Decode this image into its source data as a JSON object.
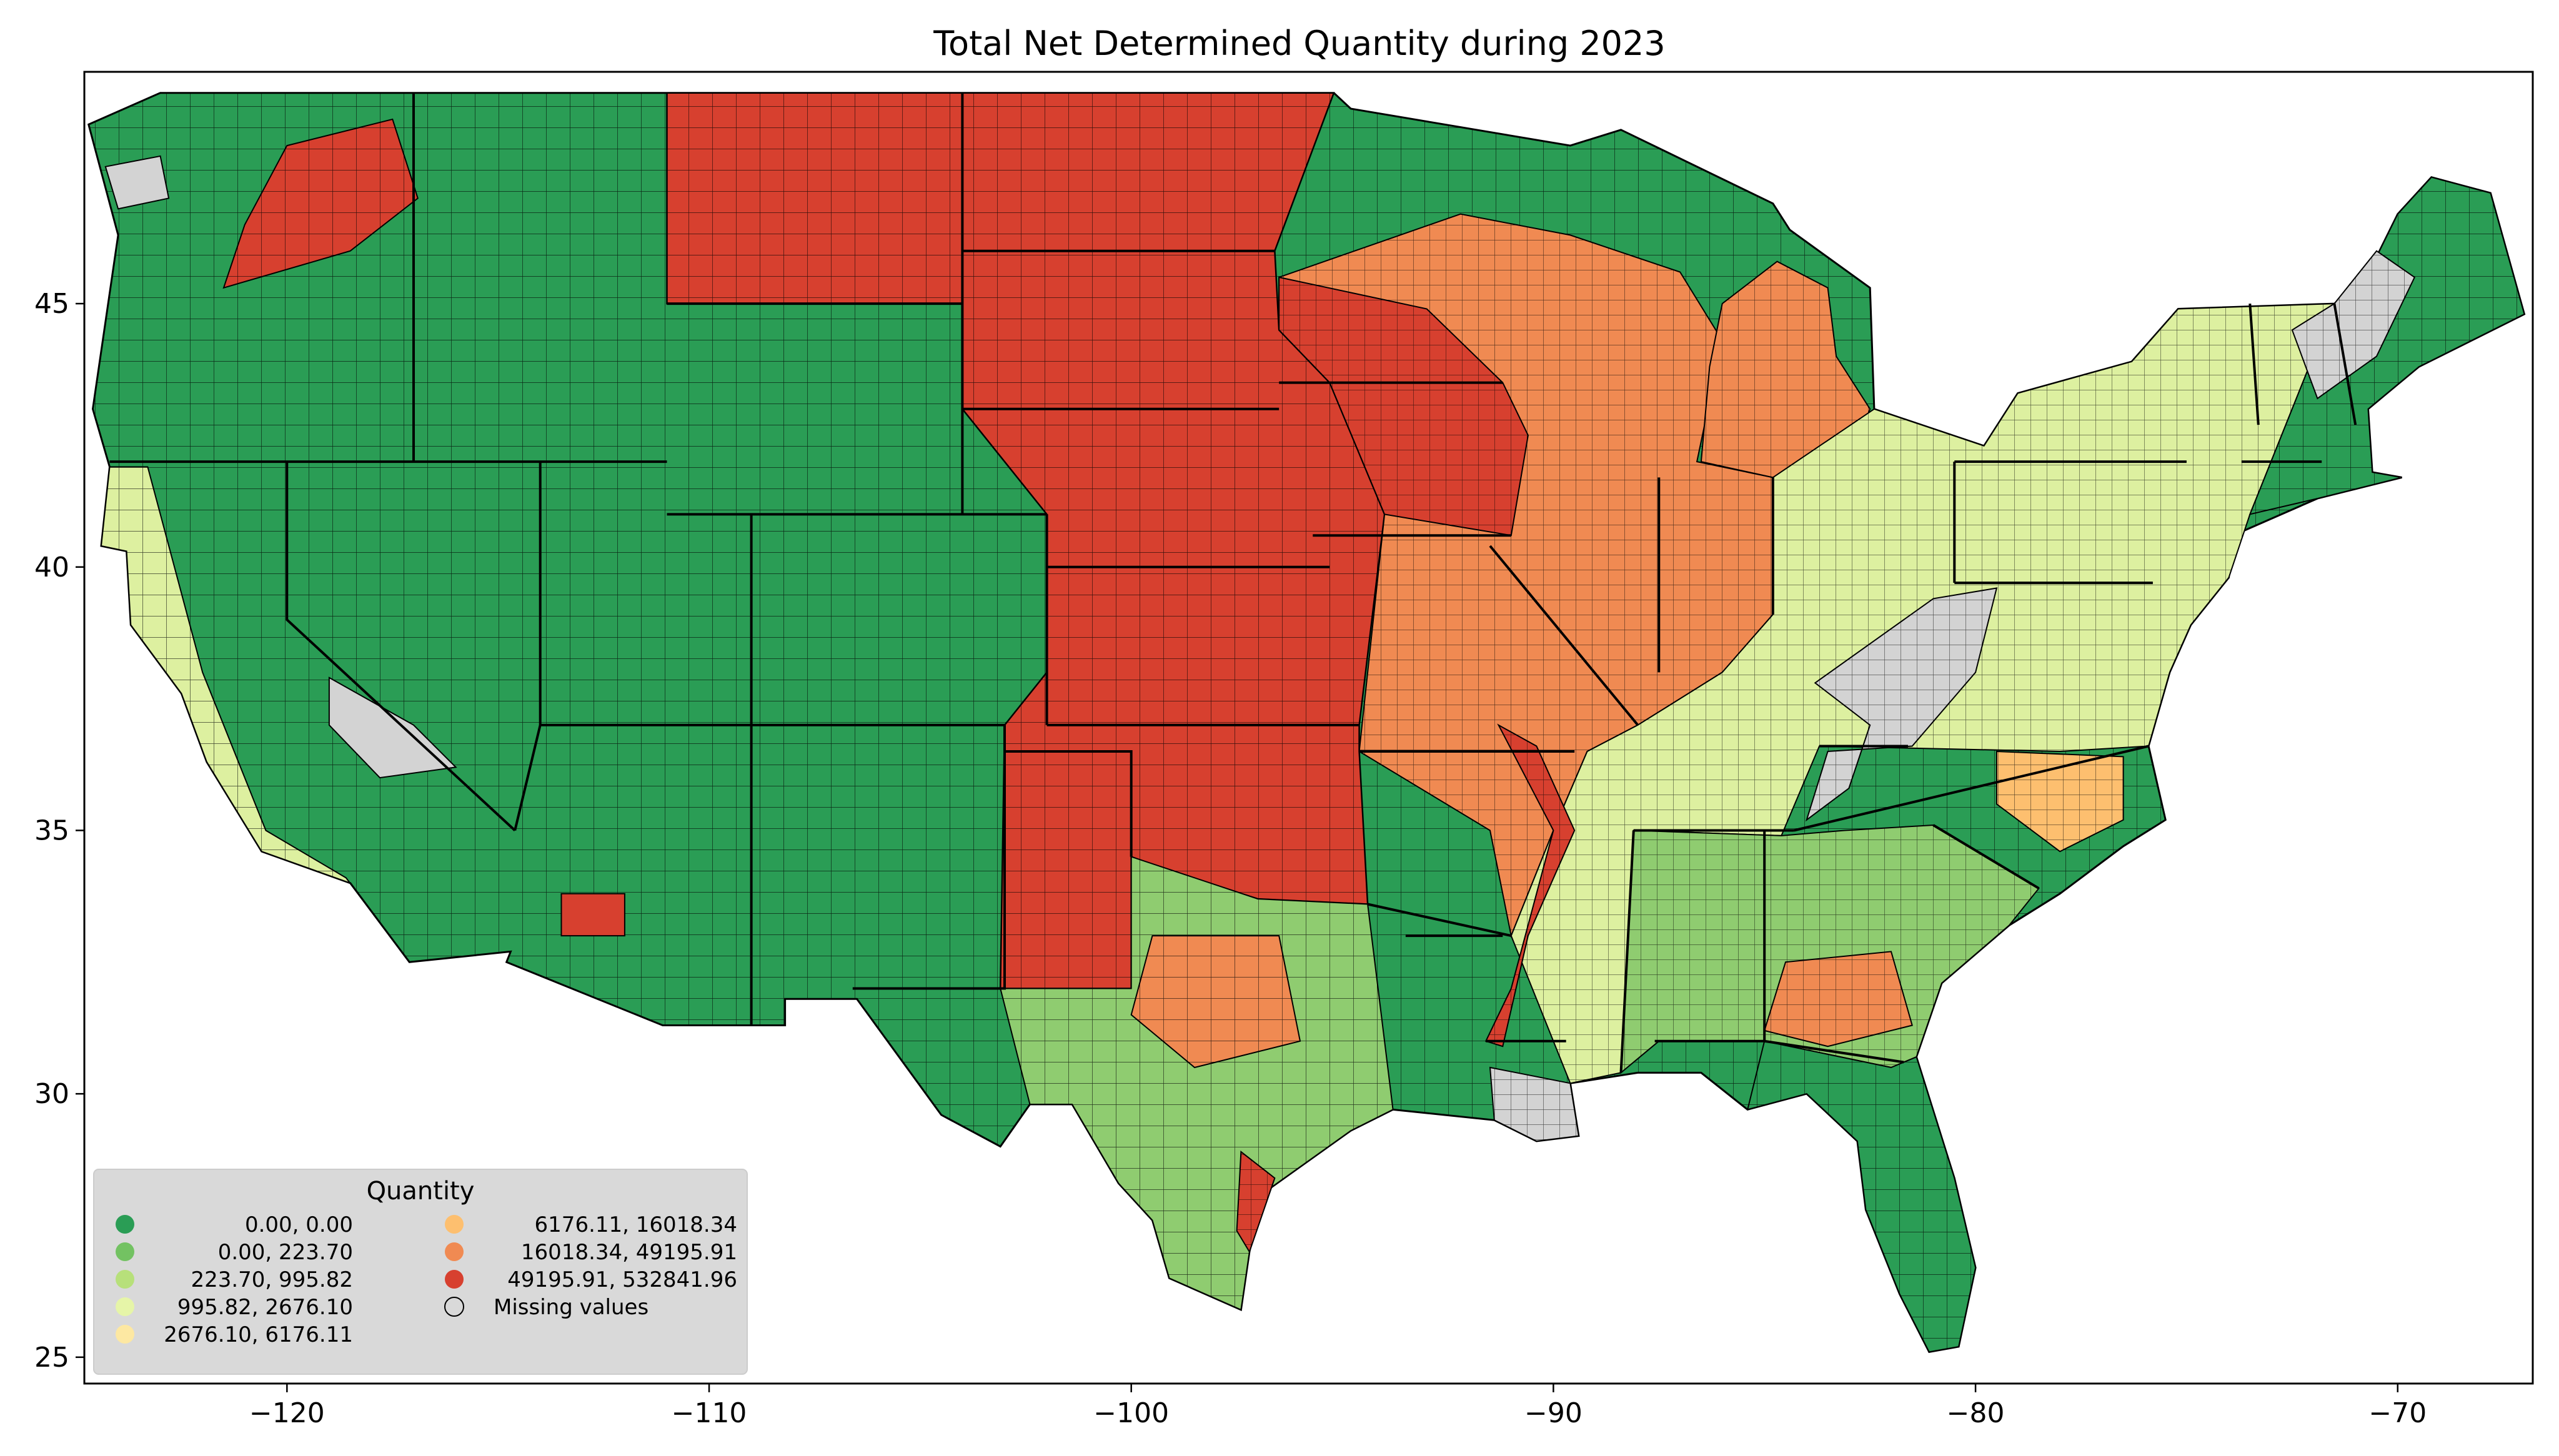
{
  "title": "Total Net Determined Quantity during 2023",
  "map": {
    "projection": "plate-carree",
    "xlim": [
      -124.8,
      -66.8
    ],
    "ylim": [
      24.5,
      49.4
    ],
    "x_ticks": [
      -120,
      -110,
      -100,
      -90,
      -80,
      -70
    ],
    "x_tick_labels": [
      "−120",
      "−110",
      "−100",
      "−90",
      "−80",
      "−70"
    ],
    "y_ticks": [
      25,
      30,
      35,
      40,
      45
    ],
    "y_tick_labels": [
      "25",
      "30",
      "35",
      "40",
      "45"
    ],
    "missing_color": "#d3d3d3",
    "region_colors": {
      "west": "#2a9d55",
      "plains": "#d7402f",
      "midwest": "#f08a52",
      "east": "#ddf0a0",
      "southeast": "#8fcc70",
      "florida": "#2a9d55"
    }
  },
  "legend": {
    "title": "Quantity",
    "placement": "lower-left",
    "entries": [
      {
        "label": "0.00,      0.00",
        "color": "#2a9d55"
      },
      {
        "label": "0.00,    223.70",
        "color": "#73c262"
      },
      {
        "label": "223.70,    995.82",
        "color": "#b7e07a"
      },
      {
        "label": "995.82,   2676.10",
        "color": "#e6f5a8"
      },
      {
        "label": "2676.10,   6176.11",
        "color": "#fde8a2"
      },
      {
        "label": "6176.11,  16018.34",
        "color": "#fdbf6f"
      },
      {
        "label": "16018.34,  49195.91",
        "color": "#f08a52"
      },
      {
        "label": "49195.91, 532841.96",
        "color": "#d7402f"
      },
      {
        "label": "Missing values",
        "color": "none"
      }
    ]
  }
}
